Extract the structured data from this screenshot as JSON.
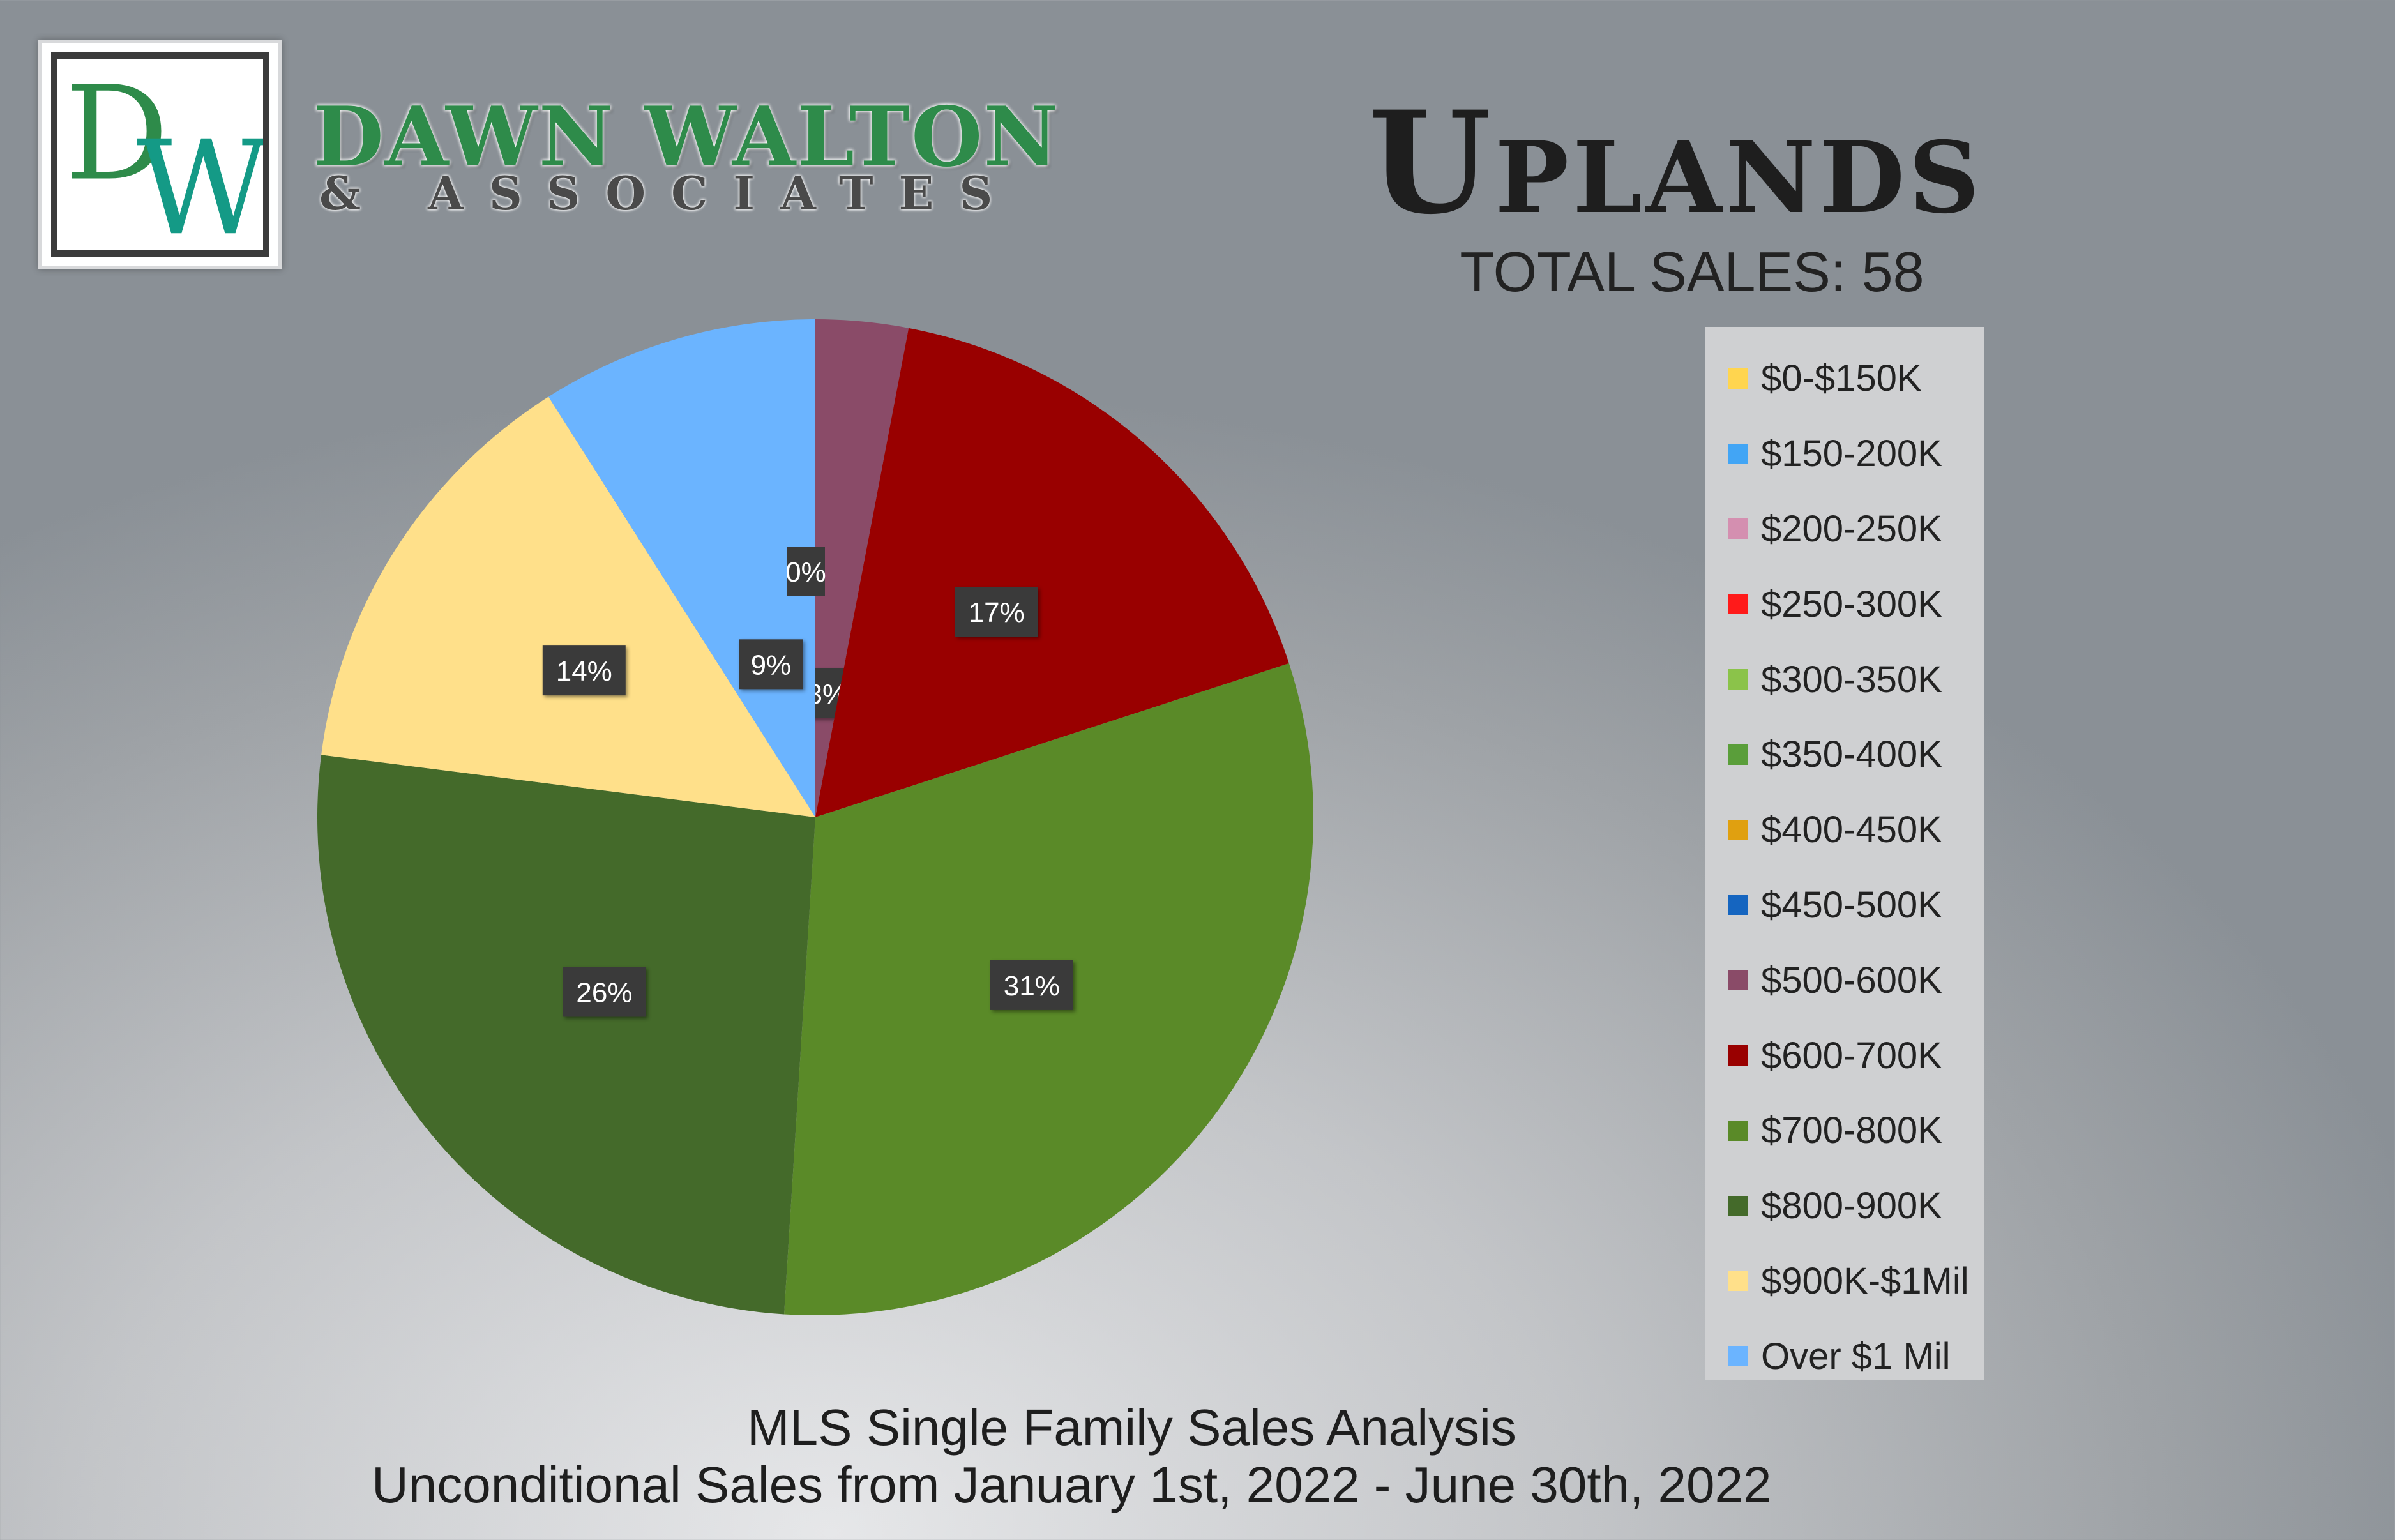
{
  "brand": {
    "logo_letters": "DW",
    "name": "DAWN WALTON",
    "subname": "& ASSOCIATES"
  },
  "header": {
    "title": "Uplands",
    "total_sales": "TOTAL SALES: 58"
  },
  "footer": {
    "line1": "MLS Single Family Sales Analysis",
    "line2": "Unconditional Sales from January 1st, 2022 - June 30th, 2022"
  },
  "chart_data": {
    "type": "pie",
    "categories": [
      "$0-$150K",
      "$150-200K",
      "$200-250K",
      "$250-300K",
      "$300-350K",
      "$350-400K",
      "$400-450K",
      "$450-500K",
      "$500-600K",
      "$600-700K",
      "$700-800K",
      "$800-900K",
      "$900K-$1Mil",
      "Over $1 Mil"
    ],
    "values": [
      0,
      0,
      0,
      0,
      0,
      0,
      0,
      0,
      3,
      17,
      31,
      26,
      14,
      9
    ],
    "data_labels": [
      "0%",
      "",
      "",
      "",
      "",
      "",
      "",
      "",
      "3%",
      "17%",
      "31%",
      "26%",
      "14%",
      "9%"
    ],
    "colors": [
      "#ffd54f",
      "#42a5f5",
      "#d48fb0",
      "#ff1a1a",
      "#8bc34a",
      "#5a9e3a",
      "#e0a010",
      "#1565c0",
      "#8a4b68",
      "#990000",
      "#5a8a28",
      "#446a2a",
      "#ffe08a",
      "#6bb4ff"
    ],
    "legend_position": "right"
  }
}
